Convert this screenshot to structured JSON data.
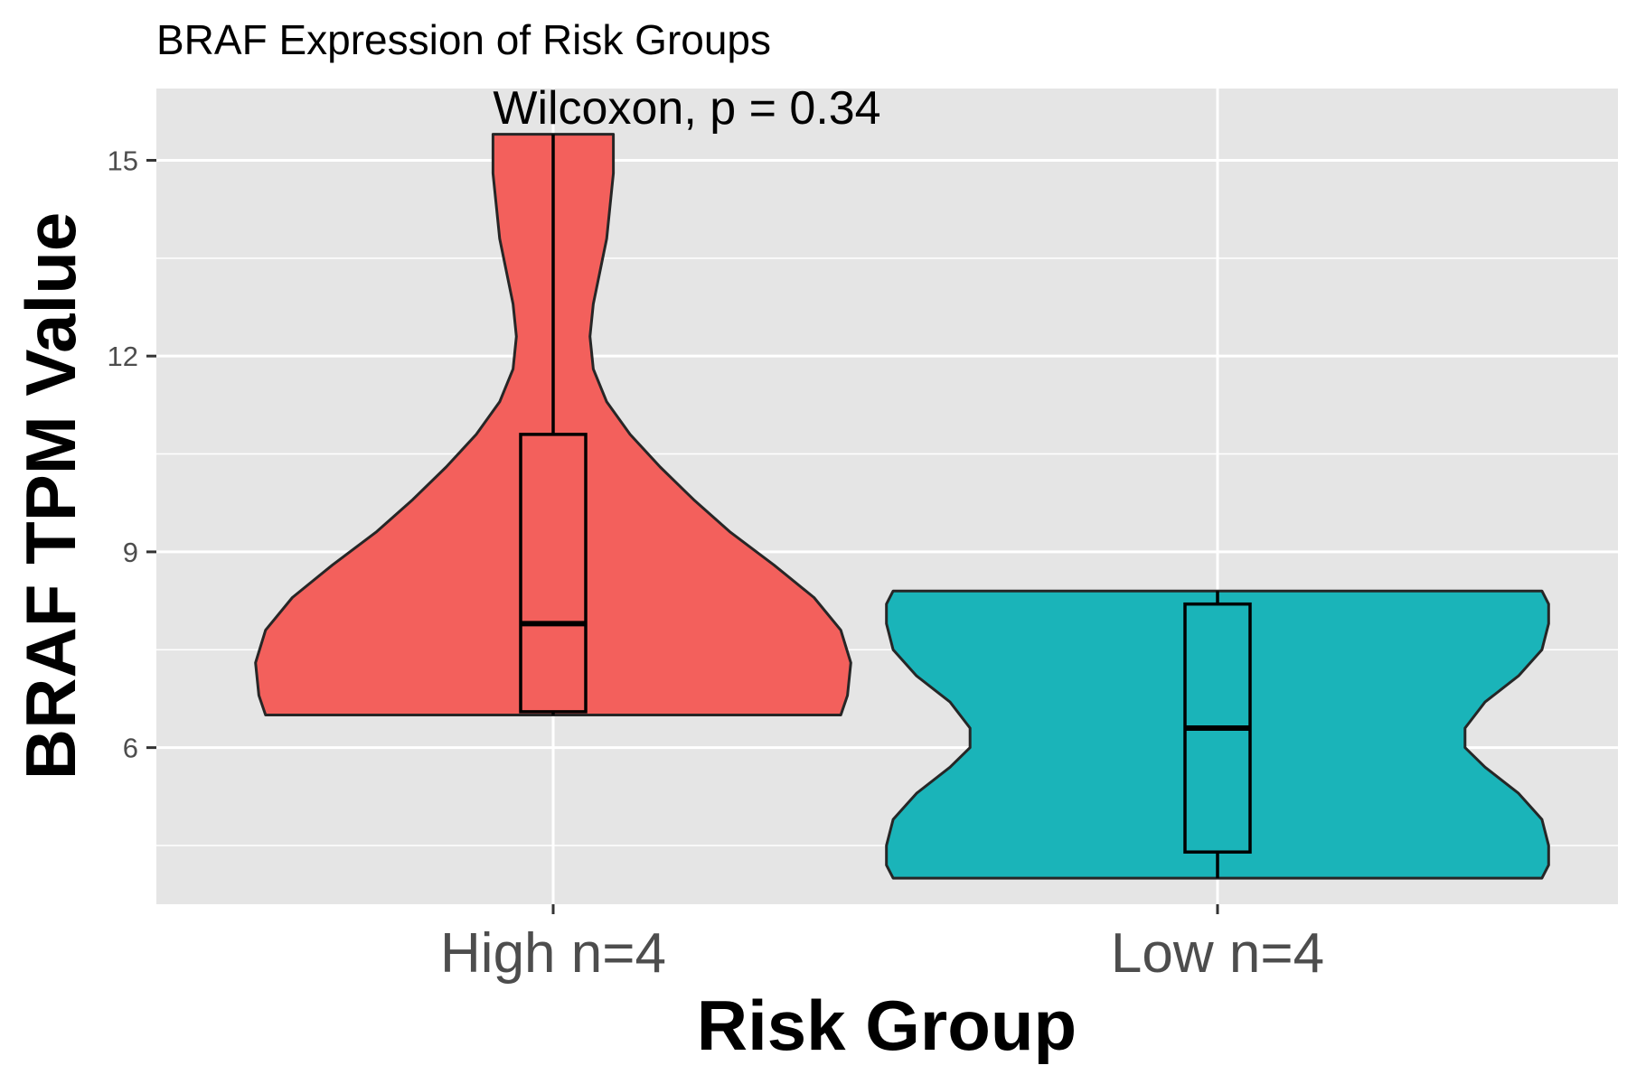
{
  "chart_data": {
    "type": "violin",
    "title": "BRAF Expression of Risk Groups",
    "annotation": "Wilcoxon, p = 0.34",
    "xlabel": "Risk Group",
    "ylabel": "BRAF TPM Value",
    "ylim": [
      3.6,
      16.1
    ],
    "yticks": [
      6,
      9,
      12,
      15
    ],
    "grid": true,
    "legend": "none",
    "panel_color": "#e5e5e5",
    "groups": [
      {
        "label": "High n=4",
        "color": "#f3605c",
        "min": 6.5,
        "q1": 6.55,
        "median": 7.9,
        "q3": 10.8,
        "max": 15.4,
        "density_halfwidth": [
          [
            6.5,
            0.86
          ],
          [
            6.8,
            0.88
          ],
          [
            7.3,
            0.89
          ],
          [
            7.8,
            0.86
          ],
          [
            8.3,
            0.78
          ],
          [
            8.8,
            0.66
          ],
          [
            9.3,
            0.53
          ],
          [
            9.8,
            0.42
          ],
          [
            10.3,
            0.32
          ],
          [
            10.8,
            0.23
          ],
          [
            11.3,
            0.16
          ],
          [
            11.8,
            0.12
          ],
          [
            12.3,
            0.11
          ],
          [
            12.8,
            0.12
          ],
          [
            13.3,
            0.14
          ],
          [
            13.8,
            0.16
          ],
          [
            14.3,
            0.17
          ],
          [
            14.8,
            0.18
          ],
          [
            15.4,
            0.18
          ]
        ]
      },
      {
        "label": "Low n=4",
        "color": "#1ab4b9",
        "min": 4.0,
        "q1": 4.4,
        "median": 6.3,
        "q3": 8.2,
        "max": 8.4,
        "density_halfwidth": [
          [
            4.0,
            0.97
          ],
          [
            4.2,
            0.99
          ],
          [
            4.5,
            0.99
          ],
          [
            4.9,
            0.97
          ],
          [
            5.3,
            0.9
          ],
          [
            5.7,
            0.8
          ],
          [
            6.0,
            0.74
          ],
          [
            6.3,
            0.74
          ],
          [
            6.7,
            0.8
          ],
          [
            7.1,
            0.9
          ],
          [
            7.5,
            0.97
          ],
          [
            7.9,
            0.99
          ],
          [
            8.2,
            0.99
          ],
          [
            8.4,
            0.97
          ]
        ]
      }
    ]
  }
}
